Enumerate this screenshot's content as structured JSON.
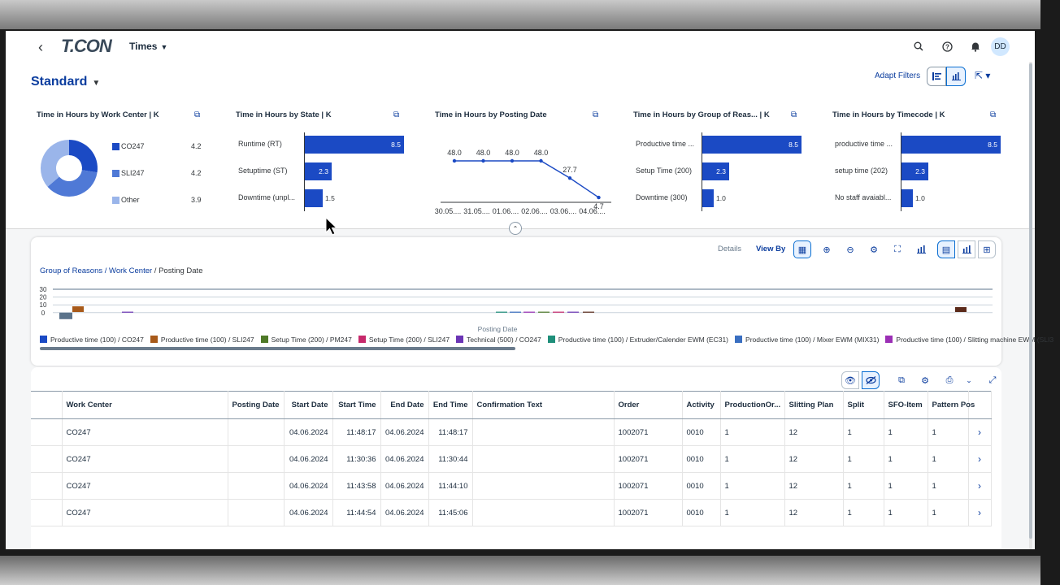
{
  "shell": {
    "logo": "T.CON",
    "app_title": "Times",
    "avatar": "DD"
  },
  "header": {
    "variant": "Standard",
    "adapt_filters": "Adapt Filters"
  },
  "cards": {
    "work_center": {
      "title": "Time in Hours by Work Center  | K",
      "items": [
        {
          "label": "CO247",
          "value": "4.2",
          "color": "#1b4ac4"
        },
        {
          "label": "SLI247",
          "value": "4.2",
          "color": "#4f79d6"
        },
        {
          "label": "Other",
          "value": "3.9",
          "color": "#9ab5ea"
        }
      ]
    },
    "state": {
      "title": "Time in Hours by State  | K",
      "items": [
        {
          "label": "Runtime (RT)",
          "value": "8.5",
          "v": 8.5
        },
        {
          "label": "Setuptime (ST)",
          "value": "2.3",
          "v": 2.3
        },
        {
          "label": "Downtime (unpl...",
          "value": "1.5",
          "v": 1.5
        }
      ]
    },
    "posting_date": {
      "title": "Time in Hours by Posting Date",
      "labels": [
        "30.05....",
        "31.05....",
        "01.06....",
        "02.06....",
        "03.06....",
        "04.06...."
      ],
      "values": [
        48.0,
        48.0,
        48.0,
        48.0,
        27.7,
        4.7
      ],
      "value_labels": [
        "48.0",
        "48.0",
        "48.0",
        "48.0",
        "27.7",
        "4.7"
      ]
    },
    "group_reason": {
      "title": "Time in Hours by Group of Reas...  | K",
      "items": [
        {
          "label": "Productive time ...",
          "value": "8.5",
          "v": 8.5
        },
        {
          "label": "Setup Time (200)",
          "value": "2.3",
          "v": 2.3
        },
        {
          "label": "Downtime (300)",
          "value": "1.0",
          "v": 1.0
        }
      ]
    },
    "timecode": {
      "title": "Time in Hours by Timecode  | K",
      "items": [
        {
          "label": "productive time ...",
          "value": "8.5",
          "v": 8.5
        },
        {
          "label": "setup time (202)",
          "value": "2.3",
          "v": 2.3
        },
        {
          "label": "No staff avaiabl...",
          "value": "1.0",
          "v": 1.0
        }
      ]
    }
  },
  "chart_toolbar": {
    "details": "Details",
    "view_by": "View By"
  },
  "main_chart": {
    "breadcrumb_link": "Group of Reasons / Work Center",
    "breadcrumb_current": " / Posting Date",
    "y_ticks": [
      "30",
      "20",
      "10",
      "0"
    ],
    "x_title": "Posting Date",
    "legend": [
      {
        "label": "Productive time (100) / CO247",
        "color": "#1b4ac4"
      },
      {
        "label": "Productive time (100) / SLI247",
        "color": "#a85a1a"
      },
      {
        "label": "Setup Time (200) / PM247",
        "color": "#4f7a28"
      },
      {
        "label": "Setup Time (200) / SLI247",
        "color": "#c7296b"
      },
      {
        "label": "Technical (500) / CO247",
        "color": "#6b35b5"
      },
      {
        "label": "Productive time (100) / Extruder/Calender EWM (EC31)",
        "color": "#1f8f7a"
      },
      {
        "label": "Productive time (100) / Mixer EWM (MIX31)",
        "color": "#3a6fc1"
      },
      {
        "label": "Productive time (100) / Slitting machine EWM (SLI3",
        "color": "#9b2fb5"
      }
    ]
  },
  "chart_data": {
    "type": "bar",
    "x_title": "Posting Date",
    "ylim": [
      0,
      30
    ],
    "y_ticks": [
      0,
      10,
      20,
      30
    ]
  },
  "table": {
    "columns": [
      "Work Center",
      "Posting Date",
      "Start Date",
      "Start Time",
      "End Date",
      "End Time",
      "Confirmation Text",
      "Order",
      "Activity",
      "ProductionOr...",
      "Slitting Plan",
      "Split",
      "SFO-Item",
      "Pattern Pos"
    ],
    "rows": [
      [
        "CO247",
        "",
        "04.06.2024",
        "11:48:17",
        "04.06.2024",
        "11:48:17",
        "",
        "1002071",
        "0010",
        "1",
        "12",
        "1",
        "1",
        "1"
      ],
      [
        "CO247",
        "",
        "04.06.2024",
        "11:30:36",
        "04.06.2024",
        "11:30:44",
        "",
        "1002071",
        "0010",
        "1",
        "12",
        "1",
        "1",
        "1"
      ],
      [
        "CO247",
        "",
        "04.06.2024",
        "11:43:58",
        "04.06.2024",
        "11:44:10",
        "",
        "1002071",
        "0010",
        "1",
        "12",
        "1",
        "1",
        "1"
      ],
      [
        "CO247",
        "",
        "04.06.2024",
        "11:44:54",
        "04.06.2024",
        "11:45:06",
        "",
        "1002071",
        "0010",
        "1",
        "12",
        "1",
        "1",
        "1"
      ]
    ]
  }
}
